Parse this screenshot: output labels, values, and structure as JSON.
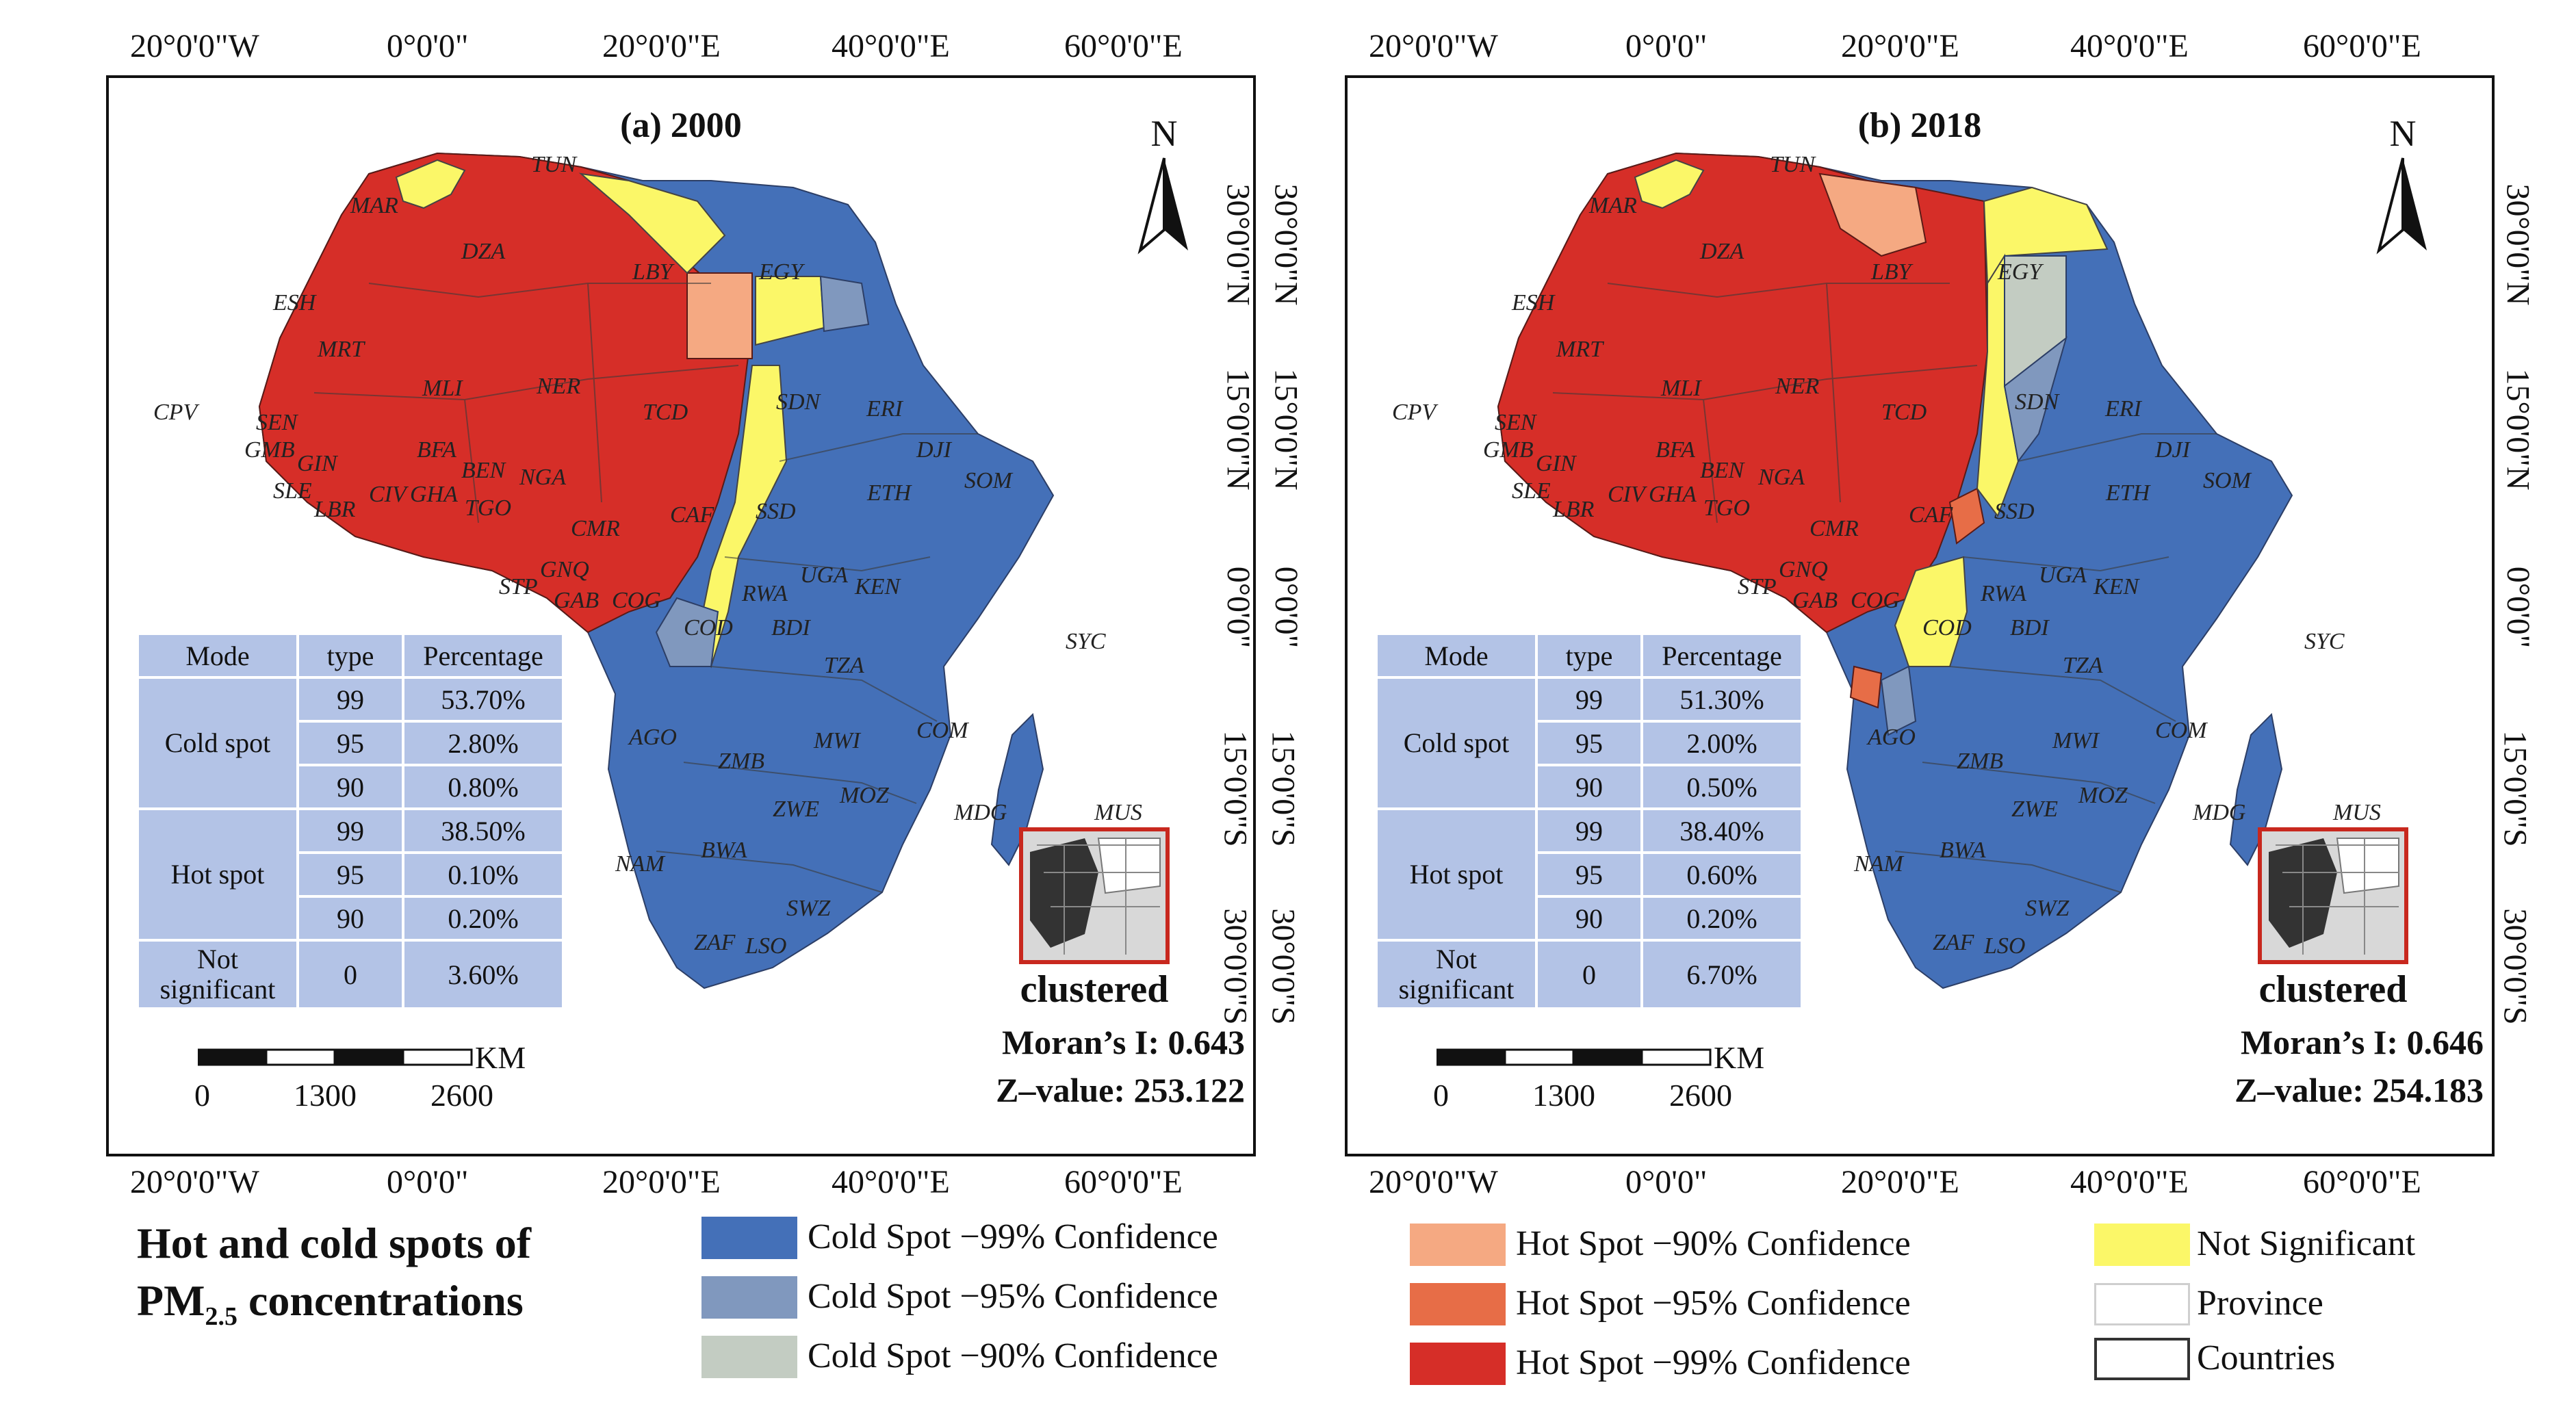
{
  "colors": {
    "cold99": "#4470b8",
    "cold95": "#8098be",
    "cold90": "#c3ccc2",
    "hot90": "#f5a982",
    "hot95": "#e76d47",
    "hot99": "#d62e28",
    "not_significant": "#fbf768",
    "table_bg": "#b3c3e6",
    "inset_border": "#c8281e"
  },
  "axis_labels": {
    "lon": [
      "20°0'0\"W",
      "0°0'0\"",
      "20°0'0\"E",
      "40°0'0\"E",
      "60°0'0\"E"
    ],
    "lat": [
      "30°0'0\"N",
      "15°0'0\"N",
      "0°0'0\"",
      "15°0'0\"S",
      "30°0'0\"S"
    ]
  },
  "country_codes": [
    "TUN",
    "MAR",
    "DZA",
    "LBY",
    "EGY",
    "ESH",
    "MRT",
    "MLI",
    "NER",
    "TCD",
    "SDN",
    "ERI",
    "DJI",
    "SOM",
    "ETH",
    "CPV",
    "SEN",
    "GMB",
    "GIN",
    "SLE",
    "LBR",
    "CIV",
    "GHA",
    "BFA",
    "BEN",
    "NGA",
    "TGO",
    "CMR",
    "CAF",
    "SSD",
    "STP",
    "GNQ",
    "GAB",
    "COG",
    "UGA",
    "KEN",
    "RWA",
    "BDI",
    "COD",
    "TZA",
    "SYC",
    "AGO",
    "ZMB",
    "MWI",
    "COM",
    "MOZ",
    "ZWE",
    "MDG",
    "MUS",
    "NAM",
    "BWA",
    "SWZ",
    "ZAF",
    "LSO"
  ],
  "table_headers": {
    "mode": "Mode",
    "type": "type",
    "pct": "Percentage"
  },
  "mode_labels": {
    "cold": "Cold spot",
    "hot": "Hot spot",
    "ns": "Not significant"
  },
  "north_label": "N",
  "cluster_label": "clustered",
  "scale": {
    "unit": "KM",
    "ticks": [
      "0",
      "1300",
      "2600"
    ]
  },
  "panels": [
    {
      "title": "(a) 2000",
      "morans_i": "Moran’s I: 0.643",
      "z_value": "Z–value: 253.122",
      "table": {
        "cold": [
          {
            "type": "99",
            "pct": "53.70%"
          },
          {
            "type": "95",
            "pct": "2.80%"
          },
          {
            "type": "90",
            "pct": "0.80%"
          }
        ],
        "hot": [
          {
            "type": "99",
            "pct": "38.50%"
          },
          {
            "type": "95",
            "pct": "0.10%"
          },
          {
            "type": "90",
            "pct": "0.20%"
          }
        ],
        "ns": [
          {
            "type": "0",
            "pct": "3.60%"
          }
        ]
      }
    },
    {
      "title": "(b) 2018",
      "morans_i": "Moran’s I: 0.646",
      "z_value": "Z–value: 254.183",
      "table": {
        "cold": [
          {
            "type": "99",
            "pct": "51.30%"
          },
          {
            "type": "95",
            "pct": "2.00%"
          },
          {
            "type": "90",
            "pct": "0.50%"
          }
        ],
        "hot": [
          {
            "type": "99",
            "pct": "38.40%"
          },
          {
            "type": "95",
            "pct": "0.60%"
          },
          {
            "type": "90",
            "pct": "0.20%"
          }
        ],
        "ns": [
          {
            "type": "0",
            "pct": "6.70%"
          }
        ]
      }
    }
  ],
  "main_title": {
    "line1": "Hot and cold spots of",
    "pm": "PM",
    "sub": "2.5",
    "rest": "concentrations"
  },
  "legend": [
    {
      "label": "Cold Spot −99% Confidence",
      "color_key": "cold99"
    },
    {
      "label": "Cold Spot −95% Confidence",
      "color_key": "cold95"
    },
    {
      "label": "Cold Spot −90% Confidence",
      "color_key": "cold90"
    },
    {
      "label": "Hot Spot −90% Confidence",
      "color_key": "hot90"
    },
    {
      "label": "Hot Spot −95% Confidence",
      "color_key": "hot95"
    },
    {
      "label": "Hot Spot −99% Confidence",
      "color_key": "hot99"
    },
    {
      "label": "Not Significant",
      "color_key": "not_significant"
    },
    {
      "label": "Province",
      "color_key": "none"
    },
    {
      "label": "Countries",
      "color_key": "none"
    }
  ]
}
